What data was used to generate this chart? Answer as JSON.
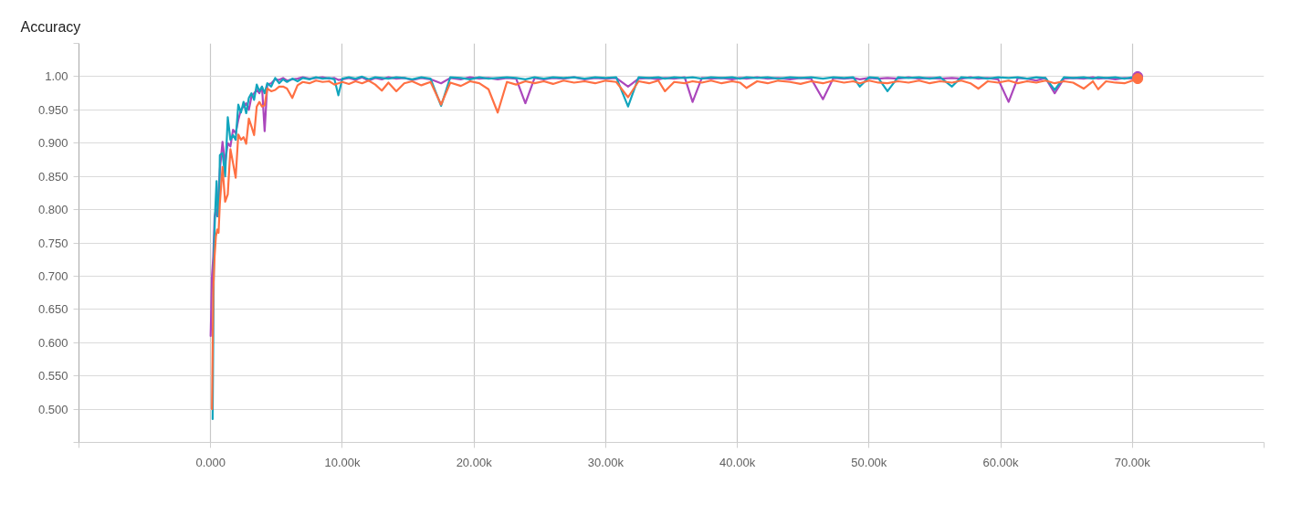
{
  "chart_data": {
    "type": "line",
    "title": "Accuracy",
    "x": [
      0,
      100,
      200,
      300,
      400,
      500,
      700,
      900,
      1100,
      1300,
      1500,
      1700,
      1900,
      2100,
      2300,
      2500,
      2700,
      2900,
      3100,
      3300,
      3500,
      3700,
      3900,
      4100,
      4300,
      4600,
      4900,
      5200,
      5500,
      5800,
      6200,
      6600,
      7000,
      7500,
      8000,
      8500,
      9000,
      9400,
      9700,
      10000,
      10500,
      11000,
      11500,
      12000,
      12500,
      13000,
      13500,
      14100,
      14700,
      15300,
      16000,
      16700,
      17500,
      18200,
      19000,
      19700,
      20400,
      21100,
      21800,
      22500,
      23200,
      23900,
      24600,
      25300,
      26000,
      26800,
      27600,
      28400,
      29200,
      30000,
      30800,
      31700,
      32500,
      33300,
      34000,
      34500,
      35200,
      36000,
      36600,
      37300,
      38000,
      38800,
      39600,
      40200,
      40700,
      41500,
      42300,
      43100,
      44000,
      44800,
      45600,
      46500,
      47300,
      48100,
      48800,
      49300,
      50000,
      50700,
      51400,
      52200,
      53000,
      53800,
      54600,
      55400,
      56300,
      57000,
      57700,
      58300,
      59000,
      59800,
      60600,
      61300,
      62000,
      62700,
      63400,
      64100,
      64800,
      65500,
      66300,
      67000,
      67400,
      68000,
      68700,
      69400,
      70000,
      70400
    ],
    "series": [
      {
        "color": "#ab47bc",
        "values": [
          0.61,
          0.7,
          0.73,
          0.79,
          0.8,
          0.79,
          0.86,
          0.902,
          0.87,
          0.9,
          0.895,
          0.92,
          0.915,
          0.935,
          0.95,
          0.955,
          0.96,
          0.95,
          0.97,
          0.975,
          0.98,
          0.975,
          0.985,
          0.918,
          0.988,
          0.99,
          0.996,
          0.995,
          0.998,
          0.994,
          0.996,
          0.997,
          0.999,
          0.997,
          0.998,
          0.999,
          0.997,
          0.998,
          0.995,
          0.996,
          0.998,
          0.995,
          0.999,
          0.994,
          0.998,
          0.996,
          0.999,
          0.997,
          0.998,
          0.995,
          0.998,
          0.996,
          0.99,
          0.998,
          0.996,
          0.999,
          0.997,
          0.998,
          0.996,
          0.998,
          0.997,
          0.96,
          0.998,
          0.996,
          0.998,
          0.997,
          0.999,
          0.996,
          0.998,
          0.997,
          0.998,
          0.985,
          0.997,
          0.998,
          0.996,
          0.998,
          0.997,
          0.999,
          0.962,
          0.998,
          0.997,
          0.998,
          0.996,
          0.998,
          0.997,
          0.999,
          0.997,
          0.998,
          0.996,
          0.998,
          0.997,
          0.966,
          0.998,
          0.997,
          0.998,
          0.996,
          0.998,
          0.997,
          0.998,
          0.997,
          0.999,
          0.997,
          0.998,
          0.997,
          0.998,
          0.997,
          0.999,
          0.997,
          0.998,
          0.996,
          0.962,
          0.998,
          0.997,
          0.994,
          0.998,
          0.975,
          0.997,
          0.998,
          0.997,
          0.999,
          0.997,
          0.998,
          0.996,
          0.998,
          0.997,
          1.0
        ]
      },
      {
        "color": "#12a5bd",
        "x": [
          150,
          250,
          350,
          450,
          550,
          650,
          700,
          900,
          1100,
          1300,
          1500,
          1700,
          1900,
          2100,
          2300,
          2500,
          2700,
          2900,
          3100,
          3300,
          3500,
          3700,
          3900,
          4100,
          4300,
          4600,
          4900,
          5200,
          5500,
          5800,
          6200,
          6600,
          7000,
          7500,
          8000,
          8500,
          9000,
          9400,
          9700,
          10000,
          10500,
          11000,
          11500,
          12000,
          12500,
          13000,
          13500,
          14100,
          14700,
          15300,
          16000,
          16700,
          17500,
          18200,
          19000,
          19700,
          20400,
          21100,
          21800,
          22500,
          23200,
          23900,
          24600,
          25300,
          26000,
          26800,
          27600,
          28400,
          29200,
          30000,
          30800,
          31700,
          32500,
          33300,
          34000,
          34500,
          35200,
          36000,
          36600,
          37300,
          38000,
          38800,
          39600,
          40200,
          40700,
          41500,
          42300,
          43100,
          44000,
          44800,
          45600,
          46500,
          47300,
          48100,
          48800,
          49300,
          50000,
          50700,
          51400,
          52200,
          53000,
          53800,
          54600,
          55400,
          56300,
          57000,
          57700,
          58300,
          59000,
          59800,
          60600,
          61300,
          62000,
          62700,
          63400,
          64100,
          64800,
          65500,
          66300,
          67000,
          67400,
          68000,
          68700,
          69400,
          70000,
          70400
        ],
        "values": [
          0.485,
          0.74,
          0.8,
          0.843,
          0.79,
          0.81,
          0.882,
          0.885,
          0.85,
          0.939,
          0.905,
          0.912,
          0.905,
          0.958,
          0.946,
          0.962,
          0.945,
          0.968,
          0.975,
          0.965,
          0.988,
          0.978,
          0.985,
          0.975,
          0.99,
          0.985,
          0.998,
          0.99,
          0.996,
          0.992,
          0.997,
          0.993,
          0.998,
          0.996,
          0.999,
          0.997,
          0.998,
          0.996,
          0.972,
          0.997,
          0.999,
          0.997,
          1.0,
          0.996,
          0.999,
          0.998,
          0.997,
          0.999,
          0.998,
          0.996,
          0.999,
          0.997,
          0.956,
          0.999,
          0.998,
          0.996,
          0.999,
          0.997,
          0.998,
          0.999,
          0.998,
          0.996,
          0.999,
          0.997,
          0.999,
          0.998,
          0.999,
          0.997,
          0.999,
          0.998,
          0.999,
          0.955,
          0.999,
          0.998,
          0.999,
          0.997,
          0.999,
          0.998,
          0.999,
          0.997,
          0.999,
          0.998,
          0.999,
          0.997,
          0.999,
          0.998,
          0.999,
          0.997,
          0.999,
          0.998,
          0.999,
          0.997,
          0.999,
          0.998,
          0.999,
          0.985,
          0.999,
          0.998,
          0.978,
          0.999,
          0.998,
          0.999,
          0.997,
          0.999,
          0.985,
          0.999,
          0.998,
          0.999,
          0.997,
          0.999,
          0.998,
          0.999,
          0.997,
          0.999,
          0.998,
          0.98,
          0.999,
          0.998,
          0.999,
          0.997,
          0.999,
          0.998,
          0.999,
          0.997,
          0.999,
          0.999
        ]
      },
      {
        "color": "#ff7043",
        "x": [
          100,
          200,
          300,
          400,
          500,
          600,
          700,
          900,
          1100,
          1300,
          1500,
          1700,
          1900,
          2100,
          2300,
          2500,
          2700,
          2900,
          3100,
          3300,
          3500,
          3700,
          3900,
          4100,
          4300,
          4600,
          4900,
          5200,
          5500,
          5800,
          6200,
          6600,
          7000,
          7500,
          8000,
          8500,
          9000,
          9400,
          9700,
          10000,
          10500,
          11000,
          11500,
          12000,
          12500,
          13000,
          13500,
          14100,
          14700,
          15300,
          16000,
          16700,
          17500,
          18200,
          19000,
          19700,
          20400,
          21100,
          21800,
          22500,
          23200,
          23900,
          24600,
          25300,
          26000,
          26800,
          27600,
          28400,
          29200,
          30000,
          30800,
          31700,
          32500,
          33300,
          34000,
          34500,
          35200,
          36000,
          36600,
          37300,
          38000,
          38800,
          39600,
          40200,
          40700,
          41500,
          42300,
          43100,
          44000,
          44800,
          45600,
          46500,
          47300,
          48100,
          48800,
          49300,
          50000,
          50700,
          51400,
          52200,
          53000,
          53800,
          54600,
          55400,
          56300,
          57000,
          57700,
          58300,
          59000,
          59800,
          60600,
          61300,
          62000,
          62700,
          63400,
          64100,
          64800,
          65500,
          66300,
          67000,
          67400,
          68000,
          68700,
          69400,
          70000,
          70400
        ],
        "values": [
          0.5,
          0.68,
          0.73,
          0.76,
          0.77,
          0.765,
          0.81,
          0.864,
          0.812,
          0.823,
          0.891,
          0.87,
          0.848,
          0.913,
          0.905,
          0.909,
          0.899,
          0.937,
          0.925,
          0.912,
          0.955,
          0.962,
          0.955,
          0.957,
          0.982,
          0.978,
          0.98,
          0.985,
          0.985,
          0.982,
          0.968,
          0.987,
          0.992,
          0.99,
          0.994,
          0.992,
          0.993,
          0.988,
          0.99,
          0.992,
          0.989,
          0.993,
          0.99,
          0.994,
          0.988,
          0.979,
          0.991,
          0.978,
          0.99,
          0.993,
          0.987,
          0.992,
          0.958,
          0.991,
          0.986,
          0.993,
          0.99,
          0.981,
          0.946,
          0.992,
          0.988,
          0.993,
          0.99,
          0.993,
          0.989,
          0.994,
          0.991,
          0.993,
          0.99,
          0.994,
          0.992,
          0.969,
          0.993,
          0.99,
          0.994,
          0.978,
          0.992,
          0.99,
          0.993,
          0.991,
          0.994,
          0.99,
          0.993,
          0.991,
          0.983,
          0.993,
          0.99,
          0.994,
          0.992,
          0.989,
          0.993,
          0.99,
          0.994,
          0.991,
          0.993,
          0.99,
          0.994,
          0.991,
          0.99,
          0.993,
          0.991,
          0.994,
          0.99,
          0.993,
          0.991,
          0.994,
          0.99,
          0.982,
          0.993,
          0.991,
          0.994,
          0.99,
          0.993,
          0.991,
          0.994,
          0.99,
          0.993,
          0.991,
          0.982,
          0.993,
          0.981,
          0.993,
          0.991,
          0.99,
          0.994,
          0.997
        ]
      },
      {
        "type": "scatter",
        "marker": "circle",
        "color": "#ab47bc",
        "x": [
          70400
        ],
        "values": [
          1.0
        ]
      },
      {
        "type": "scatter",
        "marker": "circle",
        "color": "#ff7043",
        "x": [
          70400
        ],
        "values": [
          0.997
        ]
      }
    ],
    "xlim": [
      -10000,
      80000
    ],
    "xticks": [
      {
        "value": -10000,
        "label": null
      },
      {
        "value": 0,
        "label": "0.000"
      },
      {
        "value": 10000,
        "label": "10.00k"
      },
      {
        "value": 20000,
        "label": "20.00k"
      },
      {
        "value": 30000,
        "label": "30.00k"
      },
      {
        "value": 40000,
        "label": "40.00k"
      },
      {
        "value": 50000,
        "label": "50.00k"
      },
      {
        "value": 60000,
        "label": "60.00k"
      },
      {
        "value": 70000,
        "label": "70.00k"
      },
      {
        "value": 80000,
        "label": null
      }
    ],
    "ylim": [
      0.45,
      1.05
    ],
    "yticks": [
      {
        "value": 0.45,
        "label": null
      },
      {
        "value": 0.5,
        "label": "0.500"
      },
      {
        "value": 0.55,
        "label": "0.550"
      },
      {
        "value": 0.6,
        "label": "0.600"
      },
      {
        "value": 0.65,
        "label": "0.650"
      },
      {
        "value": 0.7,
        "label": "0.700"
      },
      {
        "value": 0.75,
        "label": "0.750"
      },
      {
        "value": 0.8,
        "label": "0.800"
      },
      {
        "value": 0.85,
        "label": "0.850"
      },
      {
        "value": 0.9,
        "label": "0.900"
      },
      {
        "value": 0.95,
        "label": "0.950"
      },
      {
        "value": 1.0,
        "label": "1.00"
      },
      {
        "value": 1.05,
        "label": null
      }
    ],
    "grid": true
  }
}
